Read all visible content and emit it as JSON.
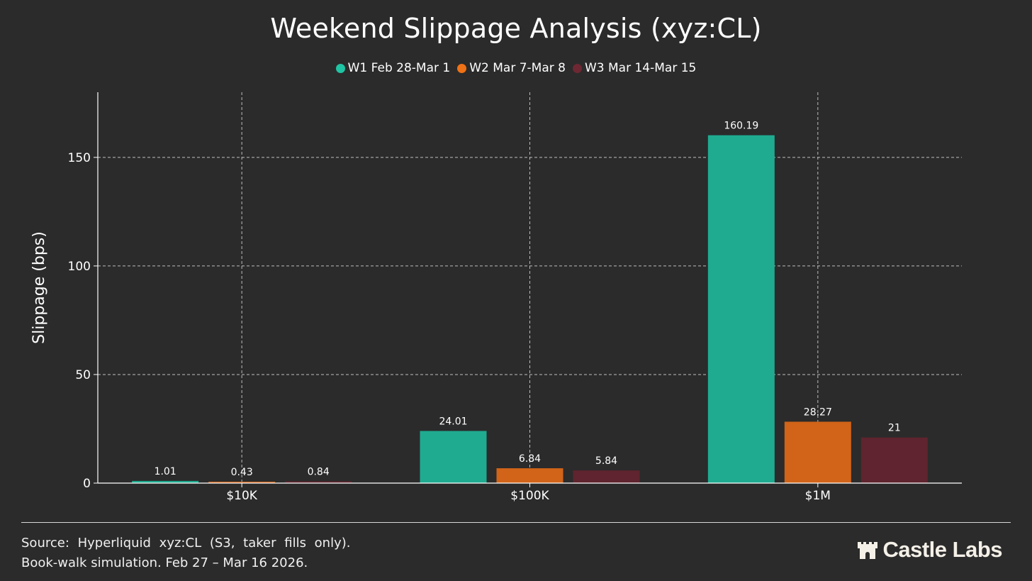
{
  "chart_data": {
    "type": "bar",
    "title": "Weekend Slippage Analysis (xyz:CL)",
    "ylabel": "Slippage (bps)",
    "xlabel": "",
    "categories": [
      "$10K",
      "$100K",
      "$1M"
    ],
    "series": [
      {
        "name": "W1 Feb 28-Mar 1",
        "color": "#1fab90",
        "values": [
          1.01,
          24.01,
          160.19
        ],
        "labels": [
          "1.01",
          "24.01",
          "160.19"
        ]
      },
      {
        "name": "W2 Mar 7-Mar 8",
        "color": "#d16418",
        "values": [
          0.43,
          6.84,
          28.27
        ],
        "labels": [
          "0.43",
          "6.84",
          "28.27"
        ]
      },
      {
        "name": "W3 Mar 14-Mar 15",
        "color": "#5f242f",
        "values": [
          0.84,
          5.84,
          21
        ],
        "labels": [
          "0.84",
          "5.84",
          "21"
        ]
      }
    ],
    "legend_dot_colors": [
      "#1fc4a4",
      "#f07216",
      "#6e2833"
    ],
    "ylim": [
      0,
      180
    ],
    "yticks": [
      0,
      50,
      100,
      150
    ],
    "grid": true,
    "legend_position": "top-center"
  },
  "footer": {
    "line1": "Source: Hyperliquid xyz:CL (S3, taker fills only).",
    "line2": "Book-walk simulation. Feb 27 – Mar 16 2026."
  },
  "logo": {
    "text": "Castle Labs",
    "icon": "castle-icon"
  }
}
